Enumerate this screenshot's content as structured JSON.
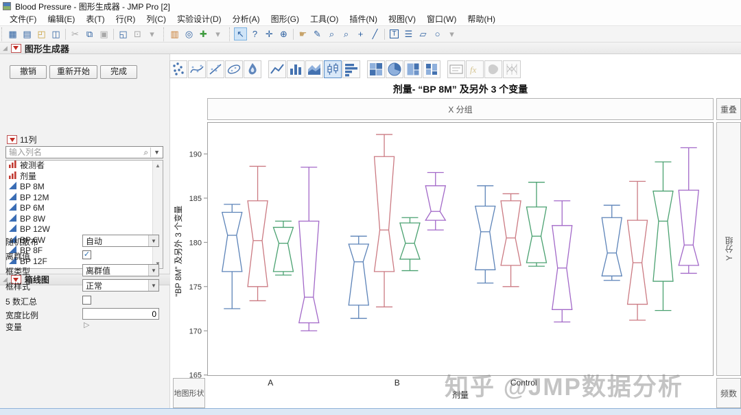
{
  "titlebar": {
    "title": "Blood Pressure - 图形生成器 - JMP Pro [2]"
  },
  "menubar": [
    "文件(F)",
    "编辑(E)",
    "表(T)",
    "行(R)",
    "列(C)",
    "实验设计(D)",
    "分析(A)",
    "图形(G)",
    "工具(O)",
    "插件(N)",
    "视图(V)",
    "窗口(W)",
    "帮助(H)"
  ],
  "toolbar": {
    "groups": [
      [
        {
          "name": "new-data-table-icon",
          "glyph": "▦",
          "color": "blue"
        },
        {
          "name": "new-journal-icon",
          "glyph": "▤",
          "color": "blue"
        },
        {
          "name": "open-icon",
          "glyph": "◰",
          "color": "gold"
        },
        {
          "name": "save-icon",
          "glyph": "◫",
          "color": "blue"
        },
        {
          "type": "sep"
        },
        {
          "name": "cut-icon",
          "glyph": "✂",
          "color": "gray"
        },
        {
          "name": "copy-icon",
          "glyph": "⧉",
          "color": "blue"
        },
        {
          "name": "paste-icon",
          "glyph": "▣",
          "color": "gray"
        },
        {
          "type": "sep"
        },
        {
          "name": "script-window-icon",
          "glyph": "◱",
          "color": "blue"
        },
        {
          "name": "lock-icon",
          "glyph": "⊡",
          "color": "gray"
        },
        {
          "name": "overflow-caret-icon",
          "glyph": "▾",
          "color": "gray"
        }
      ],
      [
        {
          "name": "layout-icon",
          "glyph": "▥",
          "color": "orange"
        },
        {
          "name": "binoculars-icon",
          "glyph": "◎",
          "color": "blue"
        },
        {
          "name": "add-rows-icon",
          "glyph": "✚",
          "color": "green"
        },
        {
          "name": "overflow-caret-icon",
          "glyph": "▾",
          "color": "gray"
        }
      ],
      [
        {
          "name": "arrow-tool-icon",
          "glyph": "↖",
          "color": "blue",
          "selected": true
        },
        {
          "name": "help-tool-icon",
          "glyph": "?",
          "color": "blue"
        },
        {
          "name": "move-tool-icon",
          "glyph": "✛",
          "color": "blue"
        },
        {
          "name": "selection-tool-icon",
          "glyph": "⊕",
          "color": "blue"
        },
        {
          "type": "sep"
        },
        {
          "name": "hand-tool-icon",
          "glyph": "☛",
          "color": "tan"
        },
        {
          "name": "brush-tool-icon",
          "glyph": "✎",
          "color": "blue"
        },
        {
          "name": "magnifier-tool-icon",
          "glyph": "⌕",
          "color": "blue"
        },
        {
          "name": "zoom-tool-icon",
          "glyph": "⌕",
          "color": "blue"
        },
        {
          "name": "crosshair-tool-icon",
          "glyph": "+",
          "color": "blue"
        },
        {
          "name": "line-tool-icon",
          "glyph": "╱",
          "color": "blue"
        },
        {
          "type": "sep"
        },
        {
          "name": "annotate-tool-icon",
          "glyph": "T",
          "color": "blue",
          "boxed": true
        },
        {
          "name": "lines-tool-icon",
          "glyph": "☰",
          "color": "blue"
        },
        {
          "name": "polygon-tool-icon",
          "glyph": "▱",
          "color": "blue"
        },
        {
          "name": "oval-tool-icon",
          "glyph": "○",
          "color": "blue"
        },
        {
          "name": "overflow-caret-icon",
          "glyph": "▾",
          "color": "gray"
        }
      ]
    ]
  },
  "builder": {
    "header": "图形生成器",
    "buttons": [
      "撤销",
      "重新开始",
      "完成"
    ],
    "columns_label": "11列",
    "search_placeholder": "输入列名",
    "columns": [
      {
        "label": "被测者",
        "type": "nominal"
      },
      {
        "label": "剂量",
        "type": "nominal"
      },
      {
        "label": "BP 8M",
        "type": "continuous"
      },
      {
        "label": "BP 12M",
        "type": "continuous"
      },
      {
        "label": "BP 6M",
        "type": "continuous"
      },
      {
        "label": "BP 8W",
        "type": "continuous"
      },
      {
        "label": "BP 12W",
        "type": "continuous"
      },
      {
        "label": "BP 6W",
        "type": "continuous"
      },
      {
        "label": "BP 8F",
        "type": "continuous"
      },
      {
        "label": "BP 12F",
        "type": "continuous"
      }
    ],
    "boxplot_panel": {
      "header": "箱线图",
      "rows": [
        {
          "label": "随机散布",
          "control": "select",
          "value": "自动"
        },
        {
          "label": "离群值",
          "control": "checkbox",
          "checked": true
        },
        {
          "label": "框类型",
          "control": "select",
          "value": "离群值"
        },
        {
          "label": "框样式",
          "control": "select",
          "value": "正常"
        },
        {
          "label": "5 数汇总",
          "control": "checkbox",
          "checked": false
        },
        {
          "label": "宽度比例",
          "control": "input",
          "value": "0"
        },
        {
          "label": "变量",
          "control": "disclosure"
        }
      ]
    }
  },
  "palette": [
    {
      "name": "points"
    },
    {
      "name": "smoother"
    },
    {
      "name": "line-of-fit"
    },
    {
      "name": "ellipse"
    },
    {
      "name": "contour"
    },
    {
      "name": "line"
    },
    {
      "name": "bar"
    },
    {
      "name": "area"
    },
    {
      "name": "box-plot",
      "selected": true
    },
    {
      "name": "histogram"
    },
    {
      "name": "heatmap"
    },
    {
      "name": "pie"
    },
    {
      "name": "treemap"
    },
    {
      "name": "mosaic"
    },
    {
      "name": "caption-box"
    },
    {
      "name": "formula",
      "grayed": true
    },
    {
      "name": "map-shapes",
      "grayed": true
    },
    {
      "name": "parallel-plot",
      "grayed": true
    }
  ],
  "graph": {
    "title": "剂量- “BP 8M” 及另外 3 个变量",
    "zones": {
      "x_group": "X 分组",
      "overlay": "重叠",
      "y_group": "Y 分组",
      "freq": "频数",
      "map_shape": "地图形状"
    }
  },
  "watermark": "知乎 @JMP数据分析",
  "chart_data": {
    "type": "box",
    "title": "剂量- “BP 8M” 及另外 3 个变量",
    "xlabel": "剂量",
    "ylabel": "“BP 8M” 及另外 3 个变量",
    "ylim": [
      164.9,
      193.6
    ],
    "yticks": [
      165,
      170,
      175,
      180,
      185,
      190
    ],
    "grid": false,
    "legend": "none",
    "categories": [
      "A",
      "B",
      "Control",
      ""
    ],
    "series": [
      {
        "name": "BP 8M",
        "color": "#5c83b8",
        "boxes": [
          {
            "lo": 172.5,
            "q1": 176.7,
            "med": 180.8,
            "q3": 183.4,
            "hi": 184.3
          },
          {
            "lo": 171.4,
            "q1": 172.9,
            "med": 177.8,
            "q3": 179.8,
            "hi": 180.7
          },
          {
            "lo": 175.4,
            "q1": 176.9,
            "med": 181.2,
            "q3": 184.1,
            "hi": 186.4
          },
          {
            "lo": 175.7,
            "q1": 176.2,
            "med": 178.8,
            "q3": 182.8,
            "hi": 184.2
          }
        ]
      },
      {
        "name": "BP 12M",
        "color": "#cb7a82",
        "boxes": [
          {
            "lo": 173.4,
            "q1": 175.0,
            "med": 180.2,
            "q3": 184.7,
            "hi": 188.6
          },
          {
            "lo": 172.7,
            "q1": 176.7,
            "med": 181.4,
            "q3": 189.7,
            "hi": 192.2
          },
          {
            "lo": 175.0,
            "q1": 177.4,
            "med": 180.5,
            "q3": 184.7,
            "hi": 185.5
          },
          {
            "lo": 171.2,
            "q1": 173.0,
            "med": 177.7,
            "q3": 182.5,
            "hi": 186.9
          }
        ]
      },
      {
        "name": "BP 6M",
        "color": "#4aa170",
        "boxes": [
          {
            "lo": 176.3,
            "q1": 176.7,
            "med": 179.9,
            "q3": 181.7,
            "hi": 182.4
          },
          {
            "lo": 176.8,
            "q1": 178.1,
            "med": 179.9,
            "q3": 182.2,
            "hi": 182.8
          },
          {
            "lo": 177.3,
            "q1": 177.7,
            "med": 180.7,
            "q3": 184.0,
            "hi": 186.8
          },
          {
            "lo": 172.3,
            "q1": 175.6,
            "med": 182.4,
            "q3": 185.8,
            "hi": 189.1
          }
        ]
      },
      {
        "name": "BP 8W",
        "color": "#a268c8",
        "boxes": [
          {
            "lo": 170.0,
            "q1": 170.9,
            "med": 173.8,
            "q3": 182.4,
            "hi": 188.5
          },
          {
            "lo": 181.4,
            "q1": 182.5,
            "med": 183.5,
            "q3": 186.4,
            "hi": 187.9
          },
          {
            "lo": 171.0,
            "q1": 172.4,
            "med": 177.1,
            "q3": 181.9,
            "hi": 184.7
          },
          {
            "lo": 176.5,
            "q1": 177.4,
            "med": 179.7,
            "q3": 185.9,
            "hi": 190.7
          }
        ]
      }
    ]
  }
}
